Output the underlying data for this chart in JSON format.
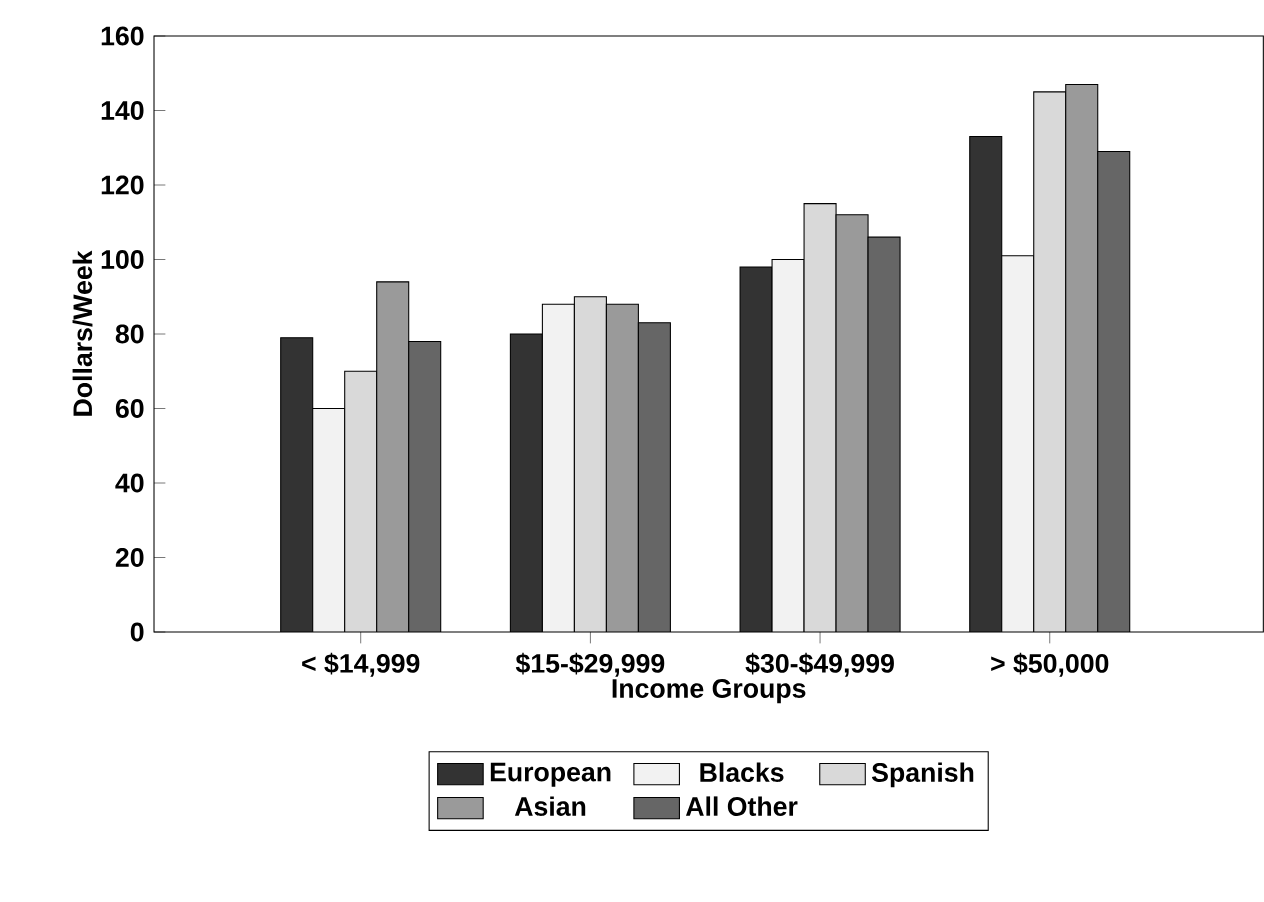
{
  "chart_data": {
    "type": "bar",
    "xlabel": "Income Groups",
    "ylabel": "Dollars/Week",
    "categories": [
      "< $14,999",
      "$15-$29,999",
      "$30-$49,999",
      "> $50,000"
    ],
    "ylim": [
      0,
      160
    ],
    "yticks": [
      0,
      20,
      40,
      60,
      80,
      100,
      120,
      140,
      160
    ],
    "legend": "bottom",
    "grid": false,
    "series": [
      {
        "name": "European",
        "color": "#333333",
        "values": [
          79,
          80,
          98,
          133
        ]
      },
      {
        "name": "Blacks",
        "color": "#f2f2f2",
        "values": [
          60,
          88,
          100,
          101
        ]
      },
      {
        "name": "Spanish",
        "color": "#d9d9d9",
        "values": [
          70,
          90,
          115,
          145
        ]
      },
      {
        "name": "Asian",
        "color": "#9a9a9a",
        "values": [
          94,
          88,
          112,
          147
        ]
      },
      {
        "name": "All Other",
        "color": "#666666",
        "values": [
          78,
          83,
          106,
          129
        ]
      }
    ]
  }
}
